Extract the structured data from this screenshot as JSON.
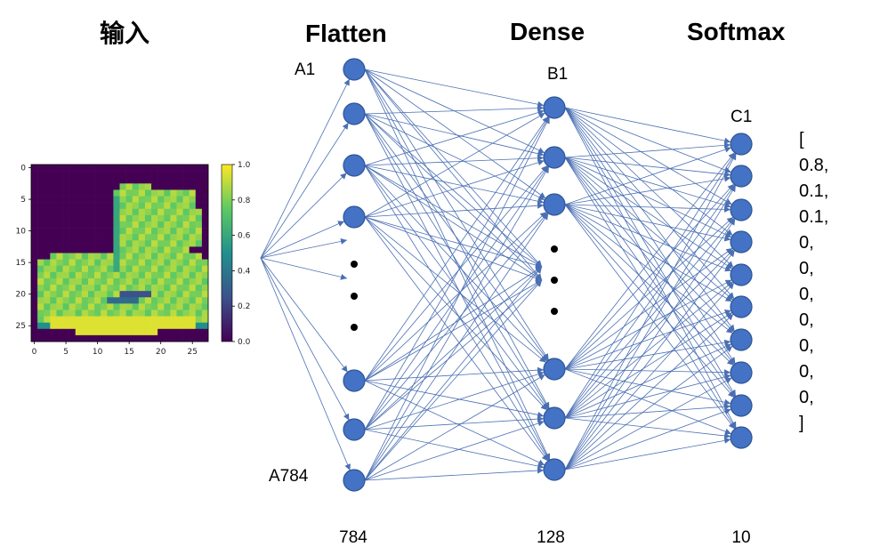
{
  "headers": {
    "input": "输入",
    "flatten": "Flatten",
    "dense": "Dense",
    "softmax": "Softmax"
  },
  "node_labels": {
    "flatten_first": "A1",
    "flatten_last": "A784",
    "dense_first": "B1",
    "softmax_first": "C1"
  },
  "layer_sizes": {
    "flatten": "784",
    "dense": "128",
    "softmax": "10"
  },
  "input_image": {
    "x_ticks": [
      "0",
      "5",
      "10",
      "15",
      "20",
      "25"
    ],
    "y_ticks": [
      "0",
      "5",
      "10",
      "15",
      "20",
      "25"
    ],
    "colorbar_ticks": [
      "0.0",
      "0.2",
      "0.4",
      "0.6",
      "0.8",
      "1.0"
    ],
    "colormap": [
      "#440154",
      "#3b528b",
      "#21908d",
      "#5dc963",
      "#fde725"
    ]
  },
  "output_vector": {
    "open": "[",
    "values": [
      "0.8,",
      "0.1,",
      "0.1,",
      "0,",
      "0,",
      "0,",
      "0,",
      "0,",
      "0,",
      "0,"
    ],
    "close": "]"
  },
  "colors": {
    "neuron_fill": "#4472C4",
    "neuron_stroke": "#2F5597",
    "edge": "#4a6fb3"
  }
}
